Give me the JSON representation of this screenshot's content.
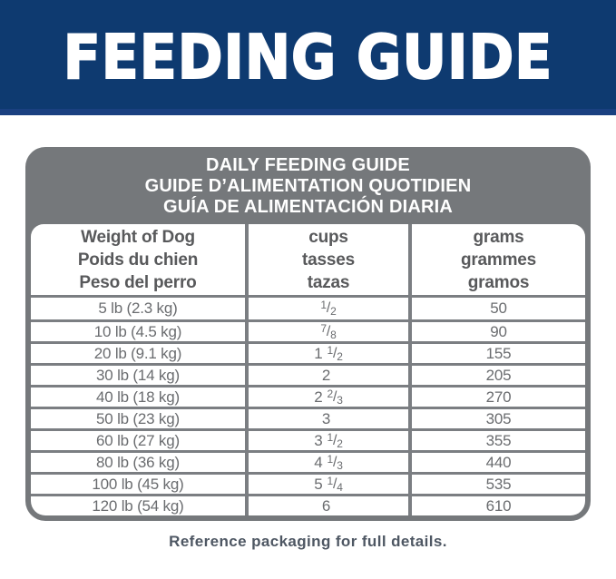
{
  "header": {
    "title": "FEEDING GUIDE"
  },
  "table": {
    "title_lines": [
      "DAILY FEEDING GUIDE",
      "GUIDE D’ALIMENTATION QUOTIDIEN",
      "GUÍA DE ALIMENTACIÓN DIARIA"
    ],
    "columns": [
      {
        "id": "weight",
        "lines": [
          "Weight of Dog",
          "Poids du chien",
          "Peso del perro"
        ]
      },
      {
        "id": "cups",
        "lines": [
          "cups",
          "tasses",
          "tazas"
        ]
      },
      {
        "id": "grams",
        "lines": [
          "grams",
          "grammes",
          "gramos"
        ]
      }
    ],
    "fraction_slash": "/",
    "rows": [
      {
        "weight": "5 lb (2.3 kg)",
        "cups": {
          "text": "1/2",
          "whole": "",
          "num": "1",
          "den": "2"
        },
        "grams": "50"
      },
      {
        "weight": "10 lb (4.5 kg)",
        "cups": {
          "text": "7/8",
          "whole": "",
          "num": "7",
          "den": "8"
        },
        "grams": "90"
      },
      {
        "weight": "20 lb (9.1 kg)",
        "cups": {
          "text": "1 1/2",
          "whole": "1",
          "num": "1",
          "den": "2"
        },
        "grams": "155"
      },
      {
        "weight": "30 lb (14 kg)",
        "cups": {
          "text": "2",
          "whole": "2",
          "num": "",
          "den": ""
        },
        "grams": "205"
      },
      {
        "weight": "40 lb (18 kg)",
        "cups": {
          "text": "2 2/3",
          "whole": "2",
          "num": "2",
          "den": "3"
        },
        "grams": "270"
      },
      {
        "weight": "50 lb (23 kg)",
        "cups": {
          "text": "3",
          "whole": "3",
          "num": "",
          "den": ""
        },
        "grams": "305"
      },
      {
        "weight": "60 lb (27 kg)",
        "cups": {
          "text": "3 1/2",
          "whole": "3",
          "num": "1",
          "den": "2"
        },
        "grams": "355"
      },
      {
        "weight": "80 lb (36 kg)",
        "cups": {
          "text": "4 1/3",
          "whole": "4",
          "num": "1",
          "den": "3"
        },
        "grams": "440"
      },
      {
        "weight": "100 lb (45 kg)",
        "cups": {
          "text": "5 1/4",
          "whole": "5",
          "num": "1",
          "den": "4"
        },
        "grams": "535"
      },
      {
        "weight": "120 lb (54 kg)",
        "cups": {
          "text": "6",
          "whole": "6",
          "num": "",
          "den": ""
        },
        "grams": "610"
      }
    ]
  },
  "footer": {
    "note": "Reference packaging for full details."
  },
  "colors": {
    "banner_navy": "#0e3a70",
    "banner_strip": "#1a4080",
    "card_gray": "#75787b",
    "grid_line": "#7b7e82",
    "header_text": "#58595b",
    "row_text": "#6a6c6f",
    "footer_text": "#4e5763",
    "title_text": "#ffffff"
  }
}
